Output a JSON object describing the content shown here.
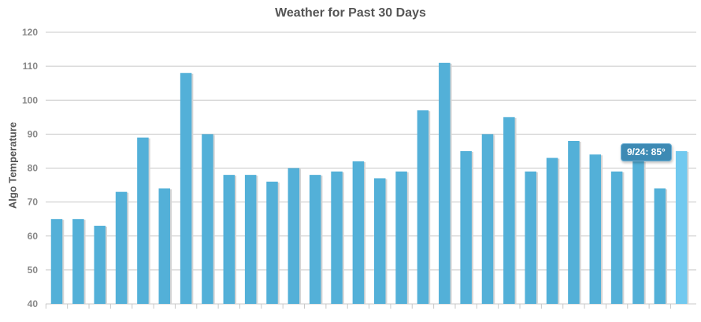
{
  "chart_data": {
    "type": "bar",
    "title": "Weather for Past 30 Days",
    "xlabel": "",
    "ylabel": "Algo Temperature",
    "ylim": [
      40,
      120
    ],
    "yticks": [
      40,
      50,
      60,
      70,
      80,
      90,
      100,
      110,
      120
    ],
    "grid": true,
    "legend": "none",
    "values": [
      65,
      65,
      63,
      73,
      89,
      74,
      108,
      90,
      78,
      78,
      76,
      80,
      78,
      79,
      82,
      77,
      79,
      97,
      111,
      85,
      90,
      95,
      79,
      83,
      88,
      84,
      79,
      82,
      74,
      85
    ],
    "highlighted_index": 29,
    "tooltip": "9/24: 85°",
    "colors": {
      "bar": "#53b0d8",
      "bar_highlight": "#71c9ef",
      "grid": "#c8c8c8",
      "axis_text": "#888888",
      "title": "#555555"
    }
  }
}
